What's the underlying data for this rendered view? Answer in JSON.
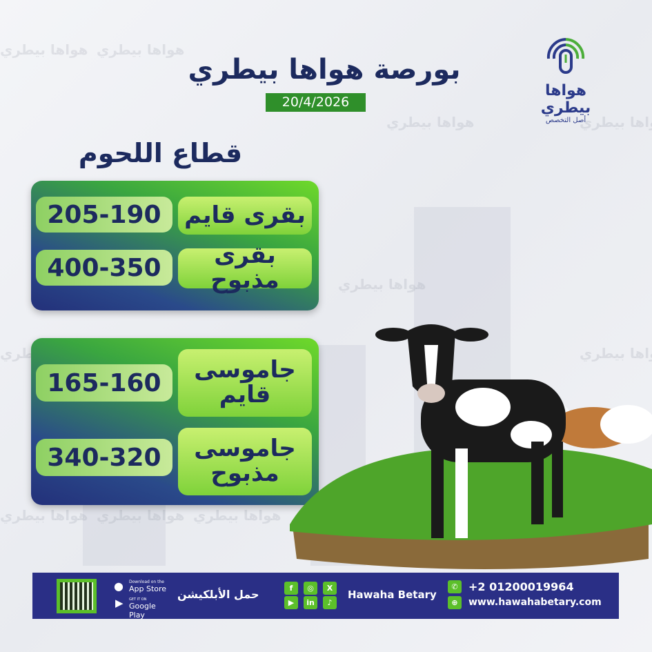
{
  "header": {
    "title": "بورصة هواها بيطري",
    "date": "20/4/2026"
  },
  "logo": {
    "name": "هواها بيطري",
    "tagline": "أصل التخصص"
  },
  "watermark": "هواها بيطري",
  "sector_title": "قطاع اللحوم",
  "groups": [
    {
      "rows": [
        {
          "label": "بقرى قايم",
          "value": "205-190"
        },
        {
          "label": "بقرى مذبوح",
          "value": "400-350"
        }
      ]
    },
    {
      "rows": [
        {
          "label": "جاموسى قايم",
          "value": "165-160"
        },
        {
          "label": "جاموسى مذبوح",
          "value": "340-320"
        }
      ]
    }
  ],
  "footer": {
    "app_store_small": "Download on the",
    "app_store": "App Store",
    "google_small": "GET IT ON",
    "google_play": "Google Play",
    "download_app": "حمل الأبلكيشن",
    "brand": "Hawaha Betary",
    "phone": "+2 01200019964",
    "website": "www.hawahabetary.com",
    "social": [
      "facebook",
      "instagram",
      "x",
      "youtube",
      "linkedin",
      "tiktok"
    ]
  },
  "colors": {
    "navy": "#1c2a5e",
    "footer": "#2a2f86",
    "green": "#5cbf2a"
  }
}
